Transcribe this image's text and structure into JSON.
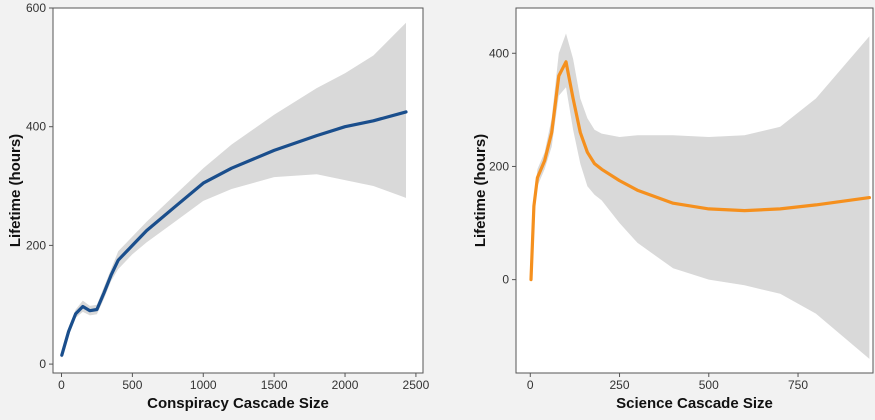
{
  "chart_data": [
    {
      "type": "line",
      "title": "",
      "xlabel": "Conspiracy Cascade Size",
      "ylabel": "Lifetime (hours)",
      "xlim": [
        -60,
        2550
      ],
      "ylim": [
        -15,
        600
      ],
      "xticks": [
        0,
        500,
        1000,
        1500,
        2000,
        2500
      ],
      "yticks": [
        0,
        200,
        400,
        600
      ],
      "grid": false,
      "colors": {
        "line": "#1a4e8c",
        "band": "#d9d9d9"
      },
      "series": [
        {
          "x": [
            2,
            50,
            100,
            150,
            200,
            250,
            300,
            350,
            400,
            500,
            600,
            800,
            1000,
            1200,
            1500,
            1800,
            2000,
            2200,
            2430
          ],
          "y": [
            15,
            55,
            85,
            97,
            90,
            92,
            120,
            150,
            175,
            200,
            225,
            265,
            305,
            330,
            360,
            385,
            400,
            410,
            425
          ]
        }
      ],
      "confidence_band": {
        "x": [
          2,
          50,
          100,
          150,
          200,
          250,
          300,
          350,
          400,
          500,
          600,
          800,
          1000,
          1200,
          1500,
          1800,
          2000,
          2200,
          2430
        ],
        "upper": [
          20,
          62,
          92,
          107,
          98,
          100,
          130,
          160,
          190,
          215,
          240,
          285,
          330,
          370,
          420,
          465,
          490,
          520,
          575
        ],
        "lower": [
          10,
          48,
          78,
          88,
          82,
          84,
          110,
          140,
          160,
          185,
          205,
          240,
          275,
          295,
          315,
          320,
          310,
          300,
          280
        ]
      }
    },
    {
      "type": "line",
      "title": "",
      "xlabel": "Science Cascade Size",
      "ylabel": "Lifetime (hours)",
      "xlim": [
        -40,
        960
      ],
      "ylim": [
        -165,
        480
      ],
      "xticks": [
        0,
        250,
        500,
        750
      ],
      "yticks": [
        0,
        200,
        400
      ],
      "grid": false,
      "colors": {
        "line": "#f5901e",
        "band": "#d9d9d9"
      },
      "series": [
        {
          "x": [
            2,
            10,
            20,
            40,
            60,
            80,
            100,
            120,
            140,
            160,
            180,
            200,
            250,
            300,
            400,
            500,
            600,
            700,
            800,
            950
          ],
          "y": [
            0,
            130,
            180,
            210,
            260,
            360,
            385,
            320,
            260,
            225,
            205,
            195,
            175,
            158,
            135,
            125,
            122,
            125,
            132,
            145
          ]
        }
      ],
      "confidence_band": {
        "x": [
          2,
          10,
          20,
          40,
          60,
          80,
          100,
          120,
          140,
          160,
          180,
          200,
          250,
          300,
          400,
          500,
          600,
          700,
          800,
          950
        ],
        "upper": [
          5,
          140,
          195,
          225,
          285,
          400,
          435,
          390,
          320,
          285,
          265,
          258,
          252,
          255,
          255,
          252,
          255,
          270,
          320,
          430
        ],
        "lower": [
          -5,
          120,
          165,
          195,
          235,
          325,
          340,
          265,
          205,
          165,
          150,
          140,
          100,
          65,
          20,
          0,
          -10,
          -25,
          -60,
          -140
        ]
      }
    }
  ]
}
